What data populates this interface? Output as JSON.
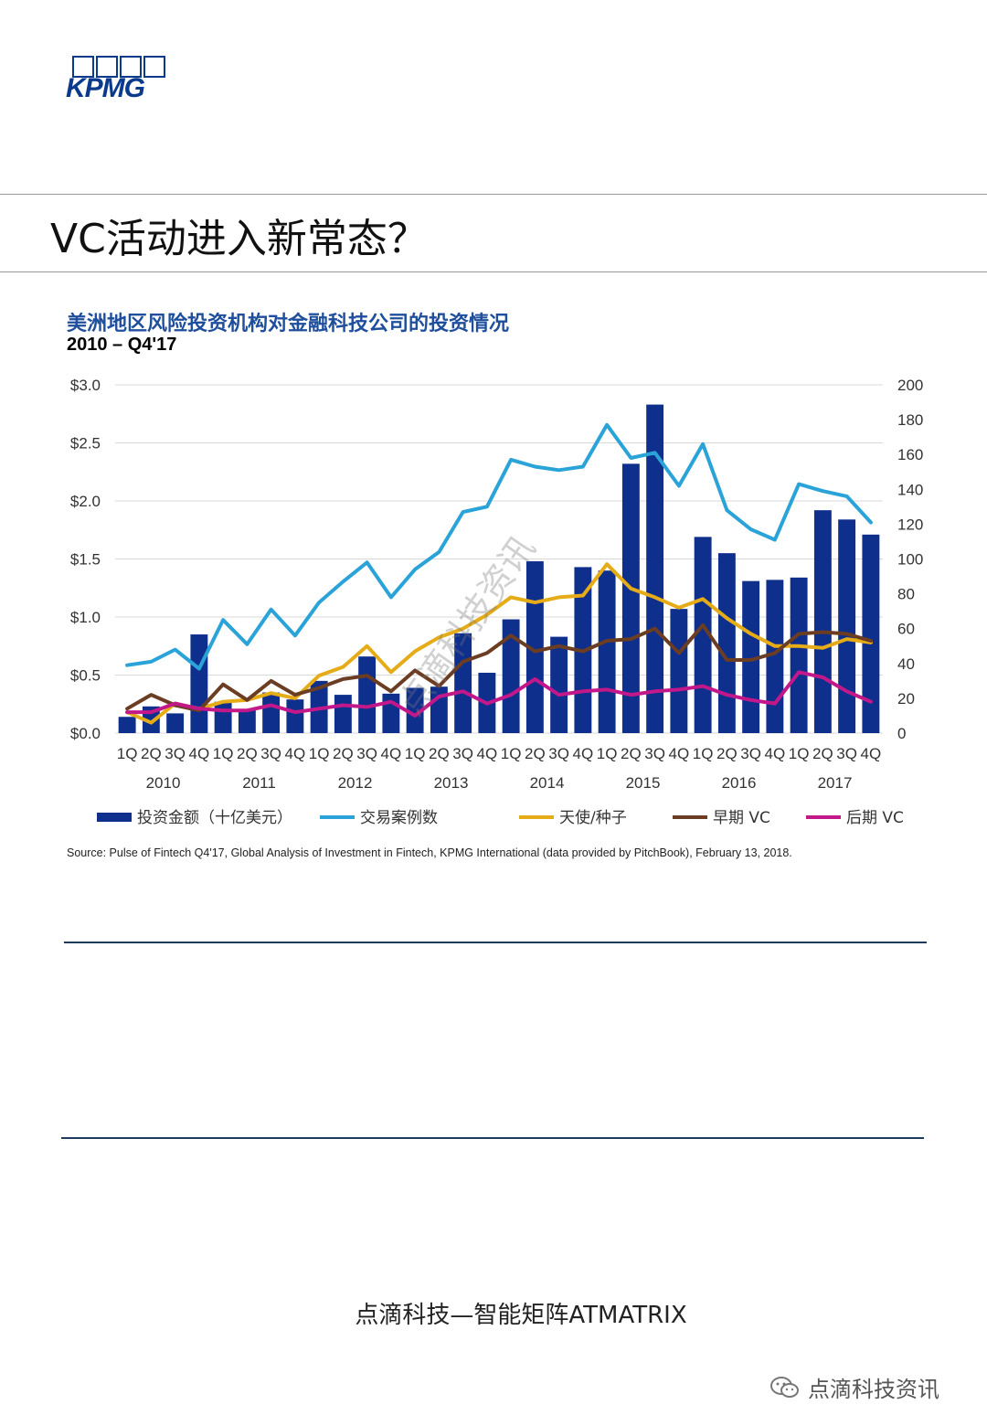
{
  "logo": {
    "text": "KPMG",
    "color": "#0a3a8c"
  },
  "page_title": "VC活动进入新常态？",
  "chart_data": {
    "type": "bar",
    "title": "美洲地区风险投资机构对金融科技公司的投资情况",
    "subtitle": "2010 – Q4'17",
    "quarters": [
      "1Q",
      "2Q",
      "3Q",
      "4Q",
      "1Q",
      "2Q",
      "3Q",
      "4Q",
      "1Q",
      "2Q",
      "3Q",
      "4Q",
      "1Q",
      "2Q",
      "3Q",
      "4Q",
      "1Q",
      "2Q",
      "3Q",
      "4Q",
      "1Q",
      "2Q",
      "3Q",
      "4Q",
      "1Q",
      "2Q",
      "3Q",
      "4Q",
      "1Q",
      "2Q",
      "3Q",
      "4Q"
    ],
    "years": [
      "2010",
      "2011",
      "2012",
      "2013",
      "2014",
      "2015",
      "2016",
      "2017"
    ],
    "y_left": {
      "ylim": [
        0,
        3.0
      ],
      "ticks": [
        "$0.0",
        "$0.5",
        "$1.0",
        "$1.5",
        "$2.0",
        "$2.5",
        "$3.0"
      ]
    },
    "y_right": {
      "ylim": [
        0,
        200
      ],
      "ticks": [
        "0",
        "20",
        "40",
        "60",
        "80",
        "100",
        "120",
        "140",
        "160",
        "180",
        "200"
      ]
    },
    "series": [
      {
        "name": "投资金额（十亿美元）",
        "kind": "bar",
        "axis": "left",
        "color": "#0f2f8c",
        "values": [
          0.14,
          0.23,
          0.17,
          0.85,
          0.27,
          0.2,
          0.35,
          0.29,
          0.45,
          0.33,
          0.66,
          0.34,
          0.39,
          0.4,
          0.86,
          0.52,
          0.98,
          1.48,
          0.83,
          1.43,
          1.4,
          2.32,
          2.83,
          1.07,
          1.69,
          1.55,
          1.31,
          1.32,
          1.34,
          1.92,
          1.84,
          1.71
        ]
      },
      {
        "name": "交易案例数",
        "kind": "line",
        "axis": "right",
        "color": "#2aa3d9",
        "values": [
          39,
          41,
          48,
          37,
          65,
          51,
          71,
          56,
          75,
          87,
          98,
          78,
          94,
          104,
          127,
          130,
          157,
          153,
          151,
          153,
          177,
          158,
          161,
          142,
          166,
          128,
          117,
          111,
          143,
          139,
          136,
          121
        ]
      },
      {
        "name": "天使/种子",
        "kind": "line",
        "axis": "right",
        "color": "#e5ac17",
        "values": [
          12,
          6,
          17,
          14,
          18,
          19,
          23,
          20,
          33,
          38,
          50,
          35,
          47,
          55,
          60,
          68,
          78,
          75,
          78,
          79,
          97,
          83,
          78,
          72,
          77,
          66,
          57,
          50,
          50,
          49,
          54,
          52
        ]
      },
      {
        "name": "早期 VC",
        "kind": "line",
        "axis": "right",
        "color": "#6b3d22",
        "values": [
          14,
          22,
          16,
          13,
          28,
          19,
          30,
          22,
          26,
          31,
          33,
          24,
          36,
          27,
          41,
          46,
          56,
          47,
          50,
          47,
          53,
          54,
          60,
          46,
          62,
          42,
          42,
          46,
          57,
          58,
          57,
          53
        ]
      },
      {
        "name": "后期 VC",
        "kind": "line",
        "axis": "right",
        "color": "#c21889",
        "values": [
          12,
          12,
          17,
          14,
          13,
          13,
          16,
          12,
          14,
          16,
          15,
          18,
          10,
          21,
          24,
          17,
          22,
          31,
          22,
          24,
          25,
          22,
          24,
          25,
          27,
          22,
          19,
          17,
          35,
          32,
          24,
          18
        ]
      }
    ]
  },
  "source": "Source: Pulse of Fintech Q4'17, Global Analysis of Investment in Fintech, KPMG International (data provided by PitchBook), February 13, 2018.",
  "watermark": "点滴科技资讯",
  "footer": "点滴科技—智能矩阵ATMATRIX",
  "wechat_label": "点滴科技资讯"
}
